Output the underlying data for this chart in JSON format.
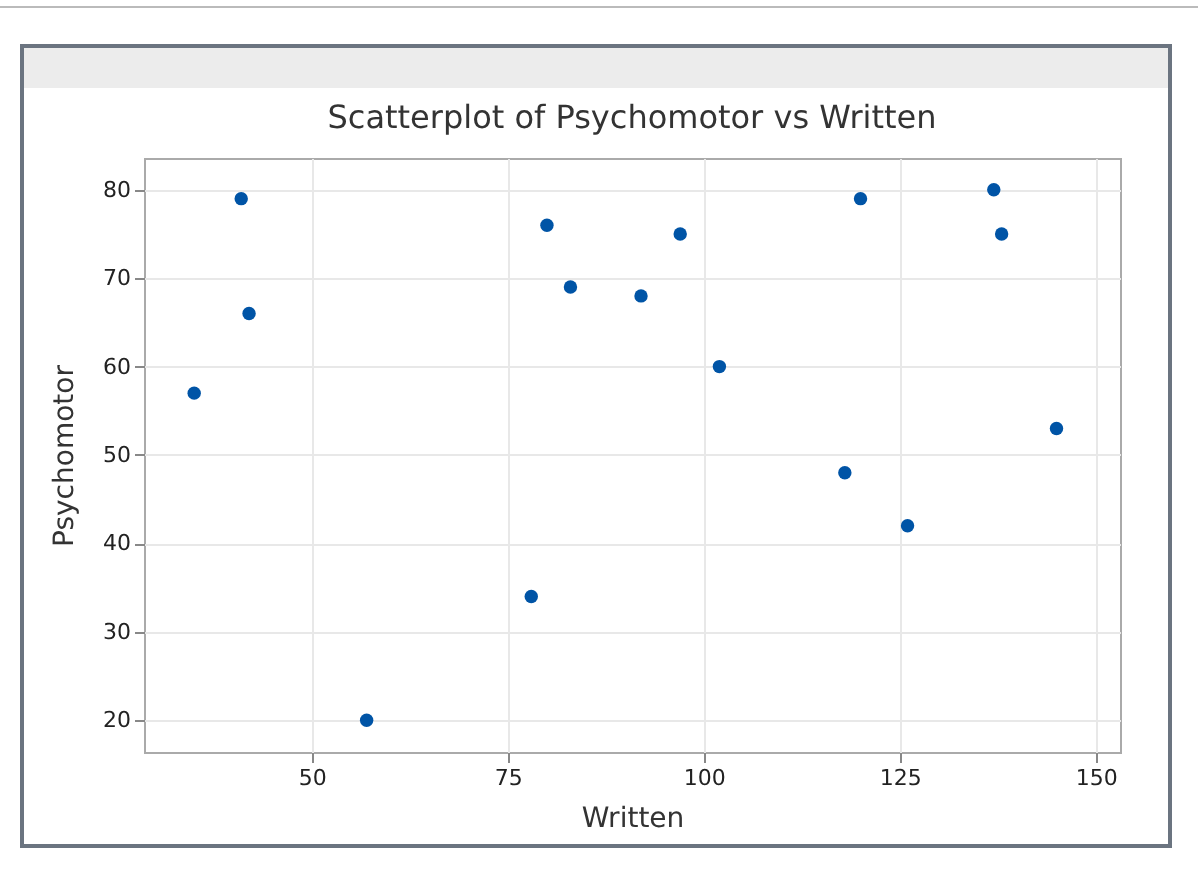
{
  "chart_data": {
    "type": "scatter",
    "title": "Scatterplot of Psychomotor vs Written",
    "xlabel": "Written",
    "ylabel": "Psychomotor",
    "x": [
      35,
      41,
      42,
      57,
      78,
      80,
      83,
      92,
      97,
      102,
      118,
      120,
      126,
      137,
      138,
      145
    ],
    "series": [
      {
        "color": "#0054a6",
        "values": [
          57,
          79,
          66,
          20,
          34,
          76,
          69,
          68,
          75,
          60,
          48,
          79,
          42,
          80,
          75,
          53
        ]
      }
    ],
    "xlim": [
      28.6,
      153.1
    ],
    "ylim": [
      16.4,
      83.6
    ],
    "xticks": [
      50,
      75,
      100,
      125,
      150
    ],
    "yticks": [
      20,
      30,
      40,
      50,
      60,
      70,
      80
    ],
    "grid": true,
    "marker": "circle"
  }
}
